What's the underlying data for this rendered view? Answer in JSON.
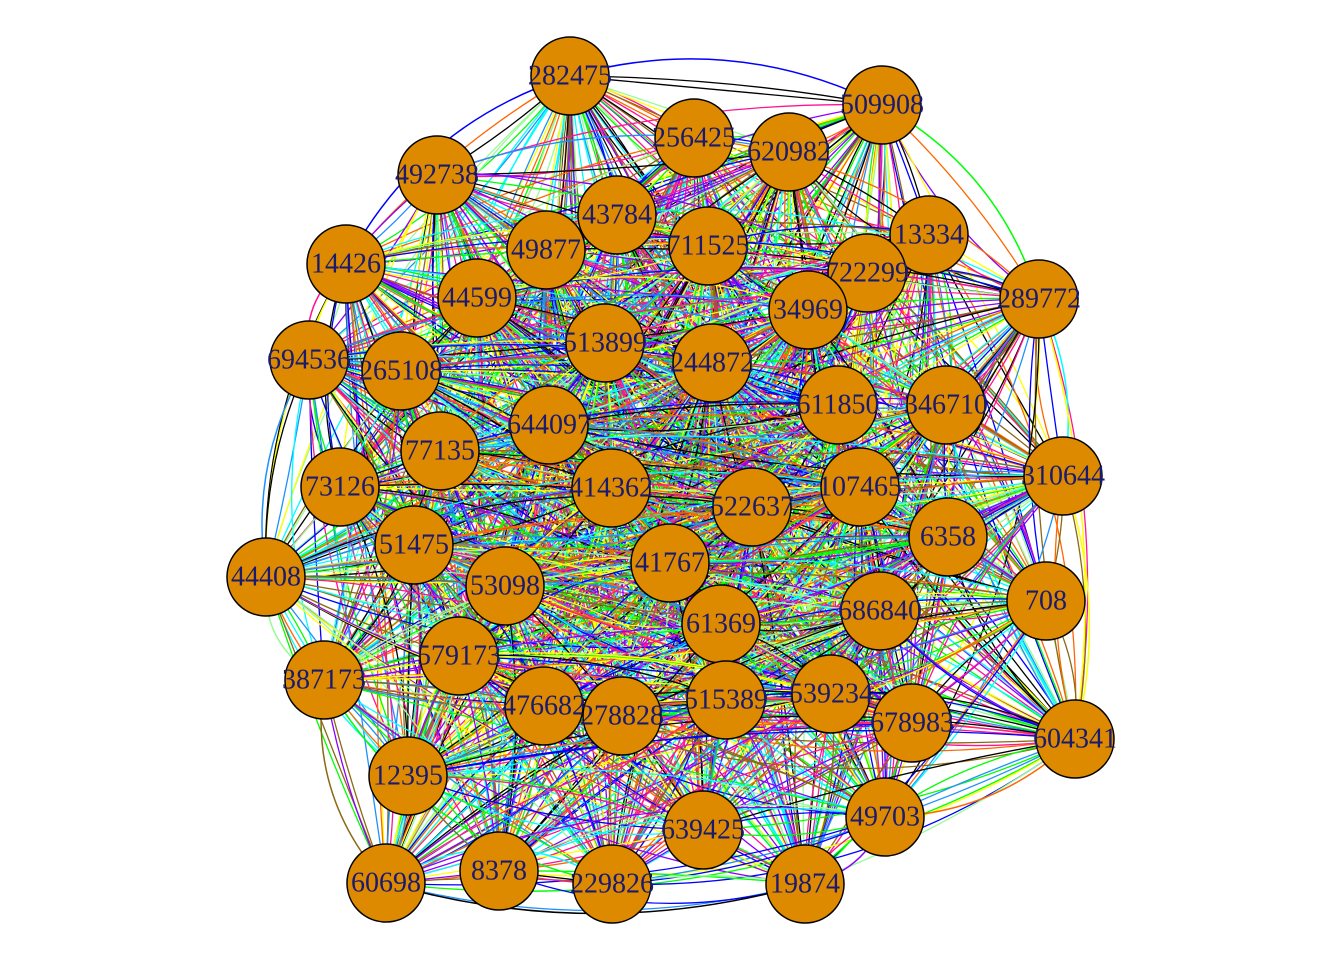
{
  "colors": {
    "node_fill": "#DD8A00",
    "node_stroke": "#000000",
    "label": "#1a1a6e",
    "edge_palette": [
      "#0000FF",
      "#00FF00",
      "#00FFFF",
      "#FFFF00",
      "#FF6600",
      "#8B00FF",
      "#000000",
      "#8B6914",
      "#98FB98",
      "#1E90FF",
      "#FF1493"
    ]
  },
  "nodes": [
    {
      "id": "282475"
    },
    {
      "id": "509908"
    },
    {
      "id": "256425"
    },
    {
      "id": "620982"
    },
    {
      "id": "492738"
    },
    {
      "id": "43784"
    },
    {
      "id": "13334"
    },
    {
      "id": "49877"
    },
    {
      "id": "711525"
    },
    {
      "id": "14426"
    },
    {
      "id": "722299"
    },
    {
      "id": "289772"
    },
    {
      "id": "44599"
    },
    {
      "id": "34969"
    },
    {
      "id": "694536"
    },
    {
      "id": "265108"
    },
    {
      "id": "513899"
    },
    {
      "id": "244872"
    },
    {
      "id": "611850"
    },
    {
      "id": "346710"
    },
    {
      "id": "644097"
    },
    {
      "id": "77135"
    },
    {
      "id": "310644"
    },
    {
      "id": "73126"
    },
    {
      "id": "414362"
    },
    {
      "id": "522637"
    },
    {
      "id": "107465"
    },
    {
      "id": "6358"
    },
    {
      "id": "51475"
    },
    {
      "id": "44408"
    },
    {
      "id": "41767"
    },
    {
      "id": "53098"
    },
    {
      "id": "708"
    },
    {
      "id": "686840"
    },
    {
      "id": "61369"
    },
    {
      "id": "387173"
    },
    {
      "id": "579173"
    },
    {
      "id": "539234"
    },
    {
      "id": "476682"
    },
    {
      "id": "278828"
    },
    {
      "id": "515389"
    },
    {
      "id": "678983"
    },
    {
      "id": "604341"
    },
    {
      "id": "12395"
    },
    {
      "id": "639425"
    },
    {
      "id": "49703"
    },
    {
      "id": "60698"
    },
    {
      "id": "8378"
    },
    {
      "id": "229826"
    },
    {
      "id": "19874"
    }
  ]
}
